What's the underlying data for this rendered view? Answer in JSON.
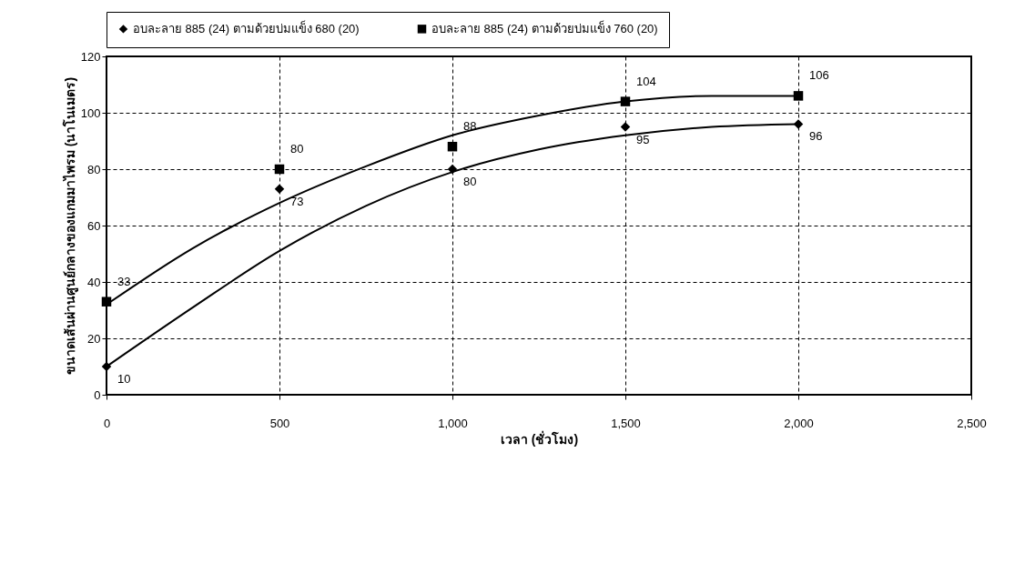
{
  "chart_data": {
    "type": "scatter",
    "xlabel": "เวลา (ชั่วโมง)",
    "ylabel": "ขนาดเส้นผ่านศูนย์กลางของแกมมาไพรม (นาโนเมตร)",
    "x": [
      0,
      500,
      1000,
      1500,
      2000
    ],
    "series": [
      {
        "name": "อบละลาย 885 (24) ตามด้วยบ่มแข็ง 680 (20)",
        "color": "#000000",
        "marker": "diamond",
        "values": [
          10,
          73,
          80,
          95,
          96
        ],
        "value_labels": [
          "10",
          "73",
          "80",
          "95",
          "96"
        ]
      },
      {
        "name": "อบละลาย 885 (24) ตามด้วยบ่มแข็ง 760 (20)",
        "color": "#000000",
        "marker": "square",
        "values": [
          33,
          80,
          88,
          104,
          106
        ],
        "value_labels": [
          "33",
          "80",
          "88",
          "104",
          "106"
        ]
      },
      {
        "type": "line",
        "color": "#000000",
        "x": [
          0,
          250,
          500,
          750,
          1000,
          1250,
          1500,
          1750,
          2000
        ],
        "values": [
          10,
          31,
          51,
          67,
          79,
          87,
          92,
          95,
          96
        ]
      },
      {
        "type": "line",
        "color": "#000000",
        "x": [
          0,
          250,
          500,
          750,
          1000,
          1250,
          1500,
          1750,
          2000
        ],
        "values": [
          32,
          52,
          68,
          81,
          92,
          99,
          104,
          106,
          106
        ]
      }
    ],
    "xlim": [
      0,
      2500
    ],
    "ylim": [
      0,
      120
    ],
    "xticks": [
      0,
      {
        "value": 500,
        "label": "500"
      },
      {
        "value": 1000,
        "label": "1,000"
      },
      {
        "value": 1500,
        "label": "1,500"
      },
      {
        "value": 2000,
        "label": "2,000"
      },
      {
        "value": 2500,
        "label": "2,500"
      }
    ],
    "yticks": [
      0,
      20,
      40,
      60,
      80,
      100,
      120
    ],
    "grid": true,
    "legend": "top"
  }
}
